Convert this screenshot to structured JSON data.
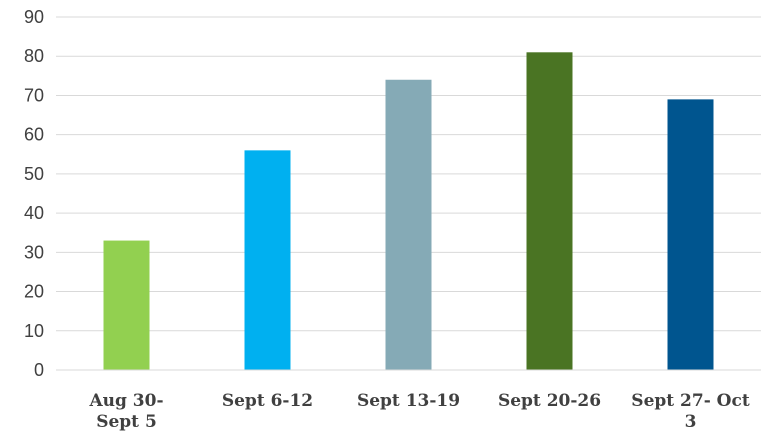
{
  "chart_data": {
    "type": "bar",
    "title": "",
    "xlabel": "",
    "ylabel": "",
    "ylim": [
      0,
      90
    ],
    "yticks": [
      0,
      10,
      20,
      30,
      40,
      50,
      60,
      70,
      80,
      90
    ],
    "grid": true,
    "legend": "none",
    "categories": [
      [
        "Aug 30-",
        "Sept 5"
      ],
      [
        "Sept 6-12"
      ],
      [
        "Sept 13-19"
      ],
      [
        "Sept 20-26"
      ],
      [
        "Sept 27- Oct",
        "3"
      ]
    ],
    "values": [
      33,
      56,
      74,
      81,
      69
    ],
    "colors": [
      "#92d050",
      "#00b0f0",
      "#85aab6",
      "#4a7423",
      "#00558f"
    ]
  }
}
